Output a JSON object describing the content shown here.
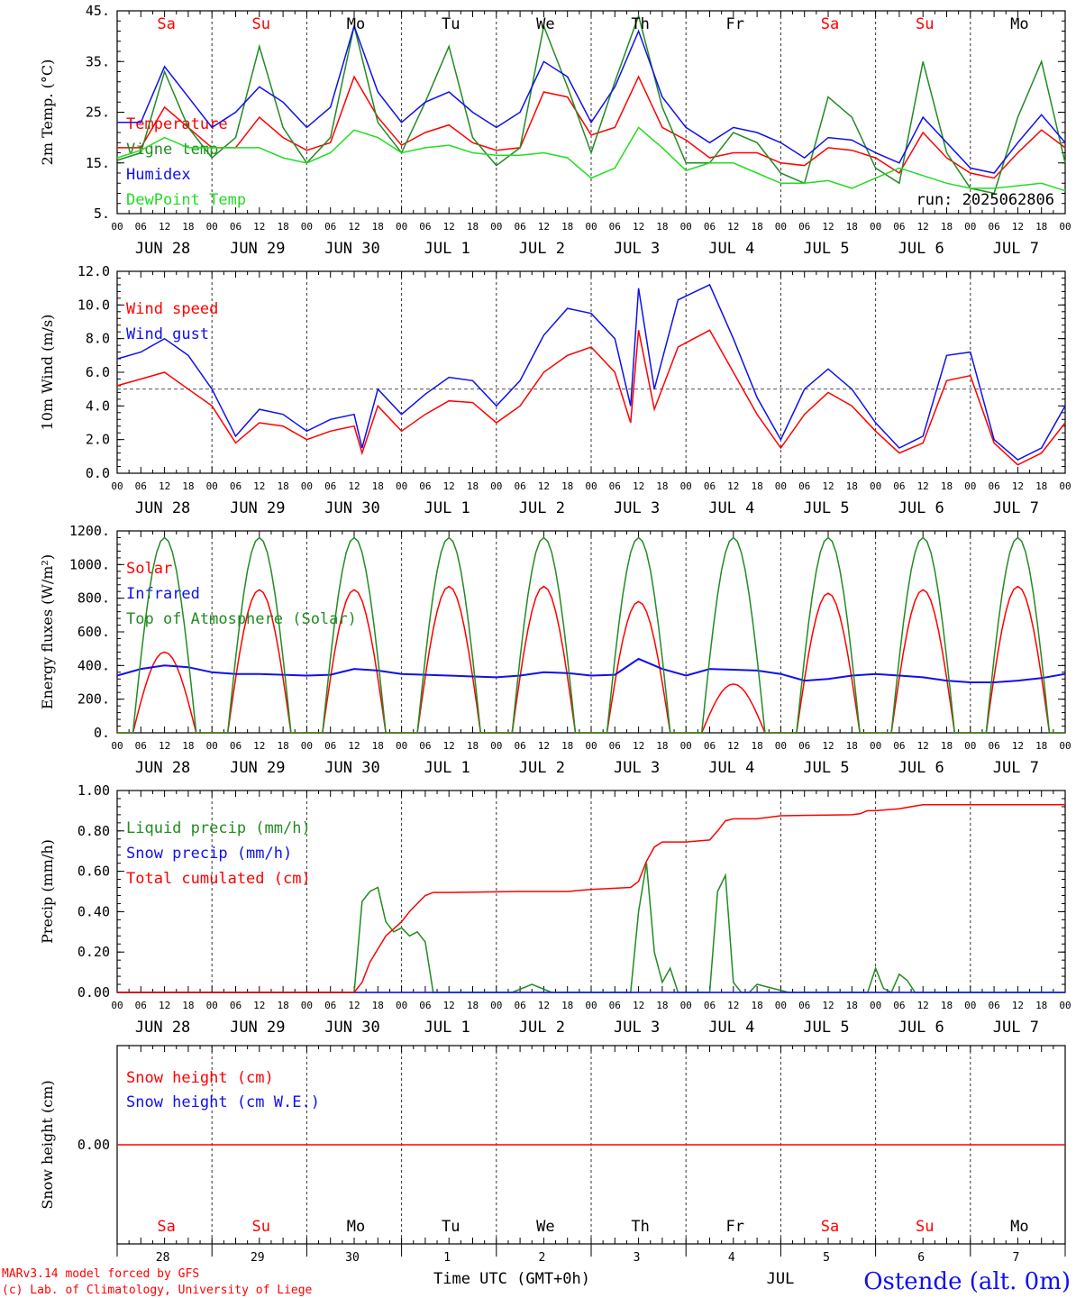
{
  "title_run": "run: 2025062806",
  "footer": {
    "model": "MARv3.14 model forced by GFS",
    "lab": "(c) Lab. of Climatology, University of Liege",
    "xlabel": "Time UTC (GMT+0h)",
    "month": "JUL",
    "station": "Ostende (alt. 0m)"
  },
  "days": [
    "Sa",
    "Su",
    "Mo",
    "Tu",
    "We",
    "Th",
    "Fr",
    "Sa",
    "Su",
    "Mo"
  ],
  "weekend_flags": [
    true,
    true,
    false,
    false,
    false,
    false,
    false,
    true,
    true,
    false
  ],
  "dates": [
    "JUN 28",
    "JUN 29",
    "JUN 30",
    "JUL  1",
    "JUL  2",
    "JUL  3",
    "JUL  4",
    "JUL  5",
    "JUL  6",
    "JUL  7"
  ],
  "day_numbers": [
    "28",
    "29",
    "30",
    "1",
    "2",
    "3",
    "4",
    "5",
    "6",
    "7"
  ],
  "hour_labels": [
    "00",
    "06",
    "12",
    "18"
  ],
  "colors": {
    "red": "#ff0000",
    "green": "#228B22",
    "blue": "#1010ee",
    "lightgreen": "#22dd22"
  },
  "chart_data": [
    {
      "type": "line",
      "ylabel": "2m Temp. (°C)",
      "ylim": [
        5,
        45
      ],
      "yticks": [
        "45.",
        "35.",
        "25.",
        "15.",
        "5."
      ],
      "ytick_values": [
        45,
        35,
        25,
        15,
        5
      ],
      "x_unit": "hours from 2025-06-28 00 UTC",
      "series": [
        {
          "name": "Temperature",
          "color": "#ff0000",
          "x": [
            0,
            6,
            12,
            18,
            24,
            30,
            36,
            42,
            48,
            54,
            60,
            66,
            72,
            78,
            84,
            90,
            96,
            102,
            108,
            114,
            120,
            126,
            132,
            138,
            144,
            150,
            156,
            162,
            168,
            174,
            180,
            186,
            192,
            198,
            204,
            210,
            216,
            222,
            228,
            234,
            240
          ],
          "y": [
            18,
            18,
            26,
            22,
            18,
            18,
            24,
            20,
            17.5,
            19,
            32,
            24,
            18.5,
            21,
            22.5,
            19,
            17.5,
            18,
            29,
            28,
            20.5,
            22,
            32,
            22,
            19.5,
            16,
            17,
            17,
            15,
            14.5,
            18,
            17.5,
            16,
            13,
            21,
            16,
            13,
            12,
            17,
            21.5,
            18
          ]
        },
        {
          "name": "Vigne temp",
          "color": "#228B22",
          "x": [
            0,
            6,
            12,
            18,
            24,
            30,
            36,
            42,
            48,
            54,
            60,
            66,
            72,
            78,
            84,
            90,
            96,
            102,
            108,
            114,
            120,
            126,
            132,
            138,
            144,
            150,
            156,
            162,
            168,
            174,
            180,
            186,
            192,
            198,
            204,
            210,
            216,
            222,
            228,
            234,
            240
          ],
          "y": [
            15.5,
            17,
            33,
            22,
            16,
            20,
            38,
            22,
            15,
            20,
            42,
            23,
            17,
            27,
            38,
            20,
            14.5,
            18,
            42,
            30,
            17,
            31,
            44,
            26,
            15,
            15,
            21,
            19,
            13,
            11,
            28,
            24,
            14,
            11,
            35,
            17,
            10,
            9,
            24,
            35,
            15
          ]
        },
        {
          "name": "Humidex",
          "color": "#1010ee",
          "x": [
            0,
            6,
            12,
            18,
            24,
            30,
            36,
            42,
            48,
            54,
            60,
            66,
            72,
            78,
            84,
            90,
            96,
            102,
            108,
            114,
            120,
            126,
            132,
            138,
            144,
            150,
            156,
            162,
            168,
            174,
            180,
            186,
            192,
            198,
            204,
            210,
            216,
            222,
            228,
            234,
            240
          ],
          "y": [
            23,
            23,
            34,
            28,
            22,
            25,
            30,
            27,
            22,
            26,
            42,
            29,
            23,
            27,
            29,
            25,
            22,
            25,
            35,
            32,
            23,
            30,
            41,
            28,
            22,
            19,
            22,
            21,
            19,
            16,
            20,
            19.5,
            17,
            15,
            24,
            19,
            14,
            13,
            19,
            24.5,
            19
          ]
        },
        {
          "name": "DewPoint Temp",
          "color": "#22dd22",
          "x": [
            0,
            6,
            12,
            18,
            24,
            30,
            36,
            42,
            48,
            54,
            60,
            66,
            72,
            78,
            84,
            90,
            96,
            102,
            108,
            114,
            120,
            126,
            132,
            138,
            144,
            150,
            156,
            162,
            168,
            174,
            180,
            186,
            192,
            198,
            204,
            210,
            216,
            222,
            228,
            234,
            240
          ],
          "y": [
            16,
            17.5,
            20,
            18,
            18,
            18,
            18,
            16,
            15,
            17,
            21.5,
            20,
            17,
            18,
            18.5,
            17,
            16.5,
            16.5,
            17,
            16,
            12,
            14,
            22,
            18,
            13.5,
            15,
            15,
            13,
            11,
            11,
            11.5,
            10,
            12,
            14,
            12.5,
            11,
            10,
            10,
            10.5,
            11,
            9.5
          ]
        }
      ]
    },
    {
      "type": "line",
      "ylabel": "10m Wind (m/s)",
      "ylim": [
        0,
        12
      ],
      "yticks": [
        "12.0",
        "10.0",
        "8.0",
        "6.0",
        "4.0",
        "2.0",
        "0.0"
      ],
      "ytick_values": [
        12,
        10,
        8,
        6,
        4,
        2,
        0
      ],
      "threshold": 5,
      "x_unit": "hours from 2025-06-28 00 UTC",
      "series": [
        {
          "name": "Wind speed",
          "color": "#ff0000",
          "x": [
            0,
            6,
            12,
            18,
            24,
            30,
            36,
            42,
            48,
            54,
            60,
            62,
            66,
            72,
            78,
            84,
            90,
            96,
            102,
            108,
            114,
            120,
            126,
            130,
            132,
            136,
            142,
            150,
            156,
            162,
            168,
            174,
            180,
            186,
            192,
            198,
            204,
            210,
            216,
            222,
            228,
            234,
            240
          ],
          "y": [
            5.2,
            5.6,
            6.0,
            5.0,
            4.0,
            1.8,
            3.0,
            2.8,
            2.0,
            2.5,
            2.8,
            1.2,
            4.0,
            2.5,
            3.5,
            4.3,
            4.2,
            3.0,
            4.0,
            6.0,
            7.0,
            7.5,
            6.0,
            3.0,
            8.5,
            3.8,
            7.5,
            8.5,
            6.0,
            3.5,
            1.5,
            3.5,
            4.8,
            4.0,
            2.5,
            1.2,
            1.8,
            5.5,
            5.8,
            1.8,
            0.5,
            1.2,
            3.0
          ]
        },
        {
          "name": "Wind gust",
          "color": "#1010ee",
          "x": [
            0,
            6,
            12,
            18,
            24,
            30,
            36,
            42,
            48,
            54,
            60,
            62,
            66,
            72,
            78,
            84,
            90,
            96,
            102,
            108,
            114,
            120,
            126,
            130,
            132,
            136,
            142,
            150,
            156,
            162,
            168,
            174,
            180,
            186,
            192,
            198,
            204,
            210,
            216,
            222,
            228,
            234,
            240
          ],
          "y": [
            6.8,
            7.2,
            8.0,
            7.0,
            5.0,
            2.2,
            3.8,
            3.5,
            2.5,
            3.2,
            3.5,
            1.5,
            5.0,
            3.5,
            4.7,
            5.7,
            5.5,
            4.0,
            5.5,
            8.2,
            9.8,
            9.5,
            8.0,
            4.0,
            11.0,
            5.0,
            10.3,
            11.2,
            8.0,
            4.5,
            2.0,
            5.0,
            6.2,
            5.0,
            3.0,
            1.5,
            2.2,
            7.0,
            7.2,
            2.0,
            0.8,
            1.5,
            4.0
          ]
        }
      ]
    },
    {
      "type": "line",
      "ylabel": "Energy fluxes (W/m²)",
      "ylim": [
        0,
        1200
      ],
      "yticks": [
        "1200.",
        "1000.",
        "800.",
        "600.",
        "400.",
        "200.",
        "0."
      ],
      "ytick_values": [
        1200,
        1000,
        800,
        600,
        400,
        200,
        0
      ],
      "x_unit": "hours from 2025-06-28 00 UTC",
      "solar_peaks": [
        480,
        850,
        850,
        870,
        870,
        780,
        290,
        830,
        850,
        870
      ],
      "series": [
        {
          "name": "Solar",
          "color": "#ff0000",
          "x": [],
          "y": []
        },
        {
          "name": "Infrared",
          "color": "#1010ee",
          "x": [
            0,
            6,
            12,
            18,
            24,
            30,
            36,
            42,
            48,
            54,
            60,
            66,
            72,
            78,
            84,
            90,
            96,
            102,
            108,
            114,
            120,
            126,
            132,
            138,
            144,
            150,
            156,
            162,
            168,
            174,
            180,
            186,
            192,
            198,
            204,
            210,
            216,
            222,
            228,
            234,
            240
          ],
          "y": [
            340,
            380,
            400,
            390,
            360,
            350,
            350,
            345,
            340,
            345,
            380,
            370,
            350,
            345,
            340,
            335,
            330,
            340,
            360,
            355,
            340,
            345,
            440,
            380,
            340,
            380,
            375,
            370,
            350,
            310,
            320,
            340,
            350,
            340,
            330,
            310,
            300,
            300,
            310,
            325,
            350
          ]
        },
        {
          "name": "Top of Atmosphere (Solar)",
          "color": "#228B22",
          "x": [],
          "y": []
        }
      ]
    },
    {
      "type": "line",
      "ylabel": "Precip (mm/h)",
      "ylim": [
        0,
        1.0
      ],
      "yticks": [
        "1.00",
        "0.80",
        "0.60",
        "0.40",
        "0.20",
        "0.00"
      ],
      "ytick_values": [
        1.0,
        0.8,
        0.6,
        0.4,
        0.2,
        0.0
      ],
      "x_unit": "hours from 2025-06-28 00 UTC",
      "series": [
        {
          "name": "Liquid precip (mm/h)",
          "color": "#228B22",
          "x": [
            0,
            60,
            62,
            64,
            66,
            68,
            70,
            72,
            74,
            76,
            78,
            80,
            82,
            84,
            100,
            105,
            110,
            130,
            132,
            134,
            136,
            138,
            140,
            142,
            150,
            152,
            154,
            156,
            158,
            160,
            162,
            170,
            190,
            192,
            194,
            196,
            198,
            200,
            202,
            204,
            240
          ],
          "y": [
            0,
            0,
            0.45,
            0.5,
            0.52,
            0.35,
            0.3,
            0.32,
            0.28,
            0.3,
            0.25,
            0,
            0,
            0,
            0,
            0.04,
            0,
            0,
            0.4,
            0.64,
            0.2,
            0.05,
            0.12,
            0,
            0,
            0.5,
            0.58,
            0.05,
            0,
            0,
            0.04,
            0,
            0,
            0.12,
            0.02,
            0,
            0.09,
            0.06,
            0,
            0,
            0
          ]
        },
        {
          "name": "Snow precip (mm/h)",
          "color": "#1010ee",
          "x": [
            0,
            240
          ],
          "y": [
            0,
            0
          ]
        },
        {
          "name": "Total cumulated (cm)",
          "color": "#ff0000",
          "x": [
            0,
            60,
            62,
            64,
            68,
            72,
            74,
            76,
            78,
            80,
            84,
            102,
            108,
            114,
            120,
            130,
            132,
            134,
            136,
            138,
            140,
            144,
            150,
            152,
            154,
            156,
            162,
            168,
            186,
            188,
            190,
            192,
            198,
            204,
            210,
            216,
            240
          ],
          "y": [
            0,
            0,
            0.05,
            0.15,
            0.28,
            0.35,
            0.4,
            0.44,
            0.48,
            0.495,
            0.495,
            0.5,
            0.5,
            0.5,
            0.51,
            0.52,
            0.55,
            0.65,
            0.72,
            0.745,
            0.745,
            0.745,
            0.755,
            0.8,
            0.85,
            0.86,
            0.86,
            0.875,
            0.88,
            0.885,
            0.9,
            0.9,
            0.91,
            0.93,
            0.93,
            0.93,
            0.93
          ]
        }
      ]
    },
    {
      "type": "line",
      "ylabel": "Snow height (cm)",
      "yticks": [
        "0.00"
      ],
      "ytick_values": [
        0
      ],
      "x_unit": "hours from 2025-06-28 00 UTC",
      "series": [
        {
          "name": "Snow height (cm)",
          "color": "#ff0000",
          "x": [
            0,
            240
          ],
          "y": [
            0,
            0
          ]
        },
        {
          "name": "Snow height (cm W.E.)",
          "color": "#1010ee",
          "x": [],
          "y": []
        }
      ]
    }
  ]
}
